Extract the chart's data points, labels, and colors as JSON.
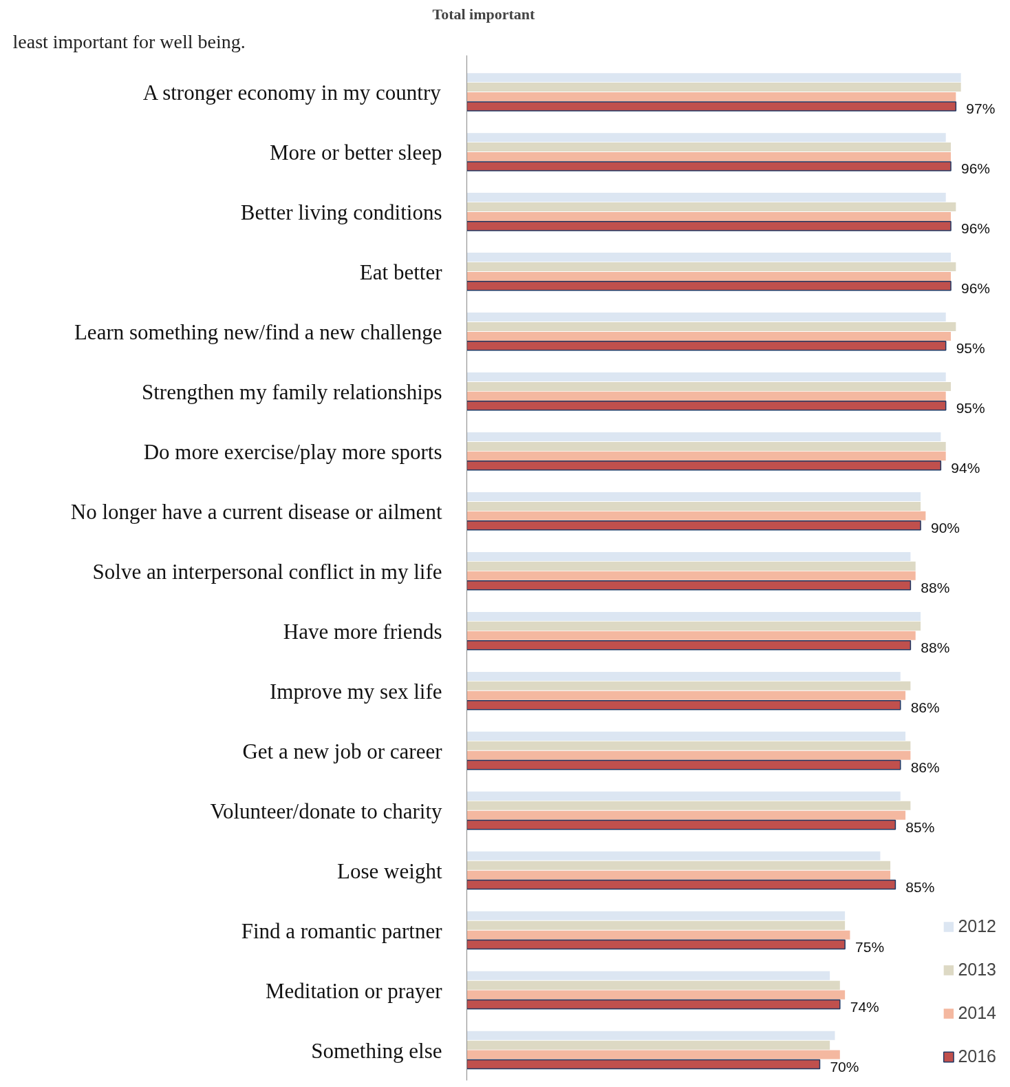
{
  "chart_data": {
    "type": "bar",
    "orientation": "horizontal",
    "title": "Total important",
    "annotations": [
      "least important for well being."
    ],
    "categories": [
      "A stronger economy in my country",
      "More or better sleep",
      "Better living conditions",
      "Eat better",
      "Learn something new/find a new challenge",
      "Strengthen my family relationships",
      "Do more exercise/play more sports",
      "No longer have a current disease or ailment",
      "Solve an interpersonal conflict in my life",
      "Have more friends",
      "Improve my sex life",
      "Get a new job or career",
      "Volunteer/donate to charity",
      "Lose weight",
      "Find a romantic partner",
      "Meditation or prayer",
      "Something else"
    ],
    "series": [
      {
        "name": "2012",
        "color": "#dce6f2",
        "values": [
          98,
          95,
          95,
          96,
          95,
          95,
          94,
          90,
          88,
          90,
          86,
          87,
          86,
          82,
          75,
          72,
          73
        ]
      },
      {
        "name": "2013",
        "color": "#ddd9c4",
        "values": [
          98,
          96,
          97,
          97,
          97,
          96,
          95,
          90,
          89,
          90,
          88,
          88,
          88,
          84,
          75,
          74,
          72
        ]
      },
      {
        "name": "2014",
        "color": "#f4b8a0",
        "values": [
          97,
          96,
          96,
          96,
          96,
          95,
          95,
          91,
          89,
          89,
          87,
          88,
          87,
          84,
          76,
          75,
          74
        ]
      },
      {
        "name": "2016",
        "color": "#c0504d",
        "values": [
          97,
          96,
          96,
          96,
          95,
          95,
          94,
          90,
          88,
          88,
          86,
          86,
          85,
          85,
          75,
          74,
          70
        ],
        "value_labels": [
          "97%",
          "96%",
          "96%",
          "96%",
          "95%",
          "95%",
          "94%",
          "90%",
          "88%",
          "88%",
          "86%",
          "86%",
          "85%",
          "85%",
          "75%",
          "74%",
          "70%"
        ]
      }
    ],
    "tick_labels": "y",
    "legend": "bottom right",
    "grid": false
  }
}
